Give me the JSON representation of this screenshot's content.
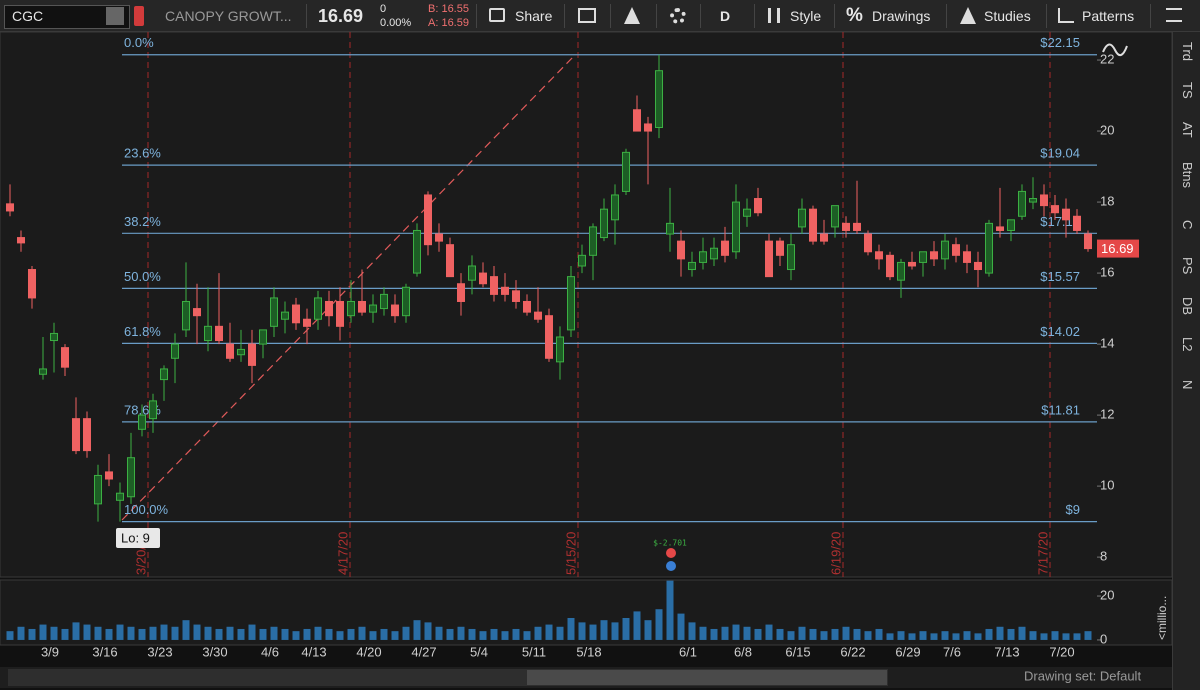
{
  "toolbar": {
    "symbol": "CGC",
    "description": "CANOPY GROWT...",
    "last": "16.69",
    "change": "0",
    "change_pct": "0.00%",
    "bid": "B: 16.55",
    "ask": "A: 16.59",
    "share": "Share",
    "aggregation": "D",
    "style": "Style",
    "drawings": "Drawings",
    "studies": "Studies",
    "patterns": "Patterns"
  },
  "sidebar": [
    "Trd",
    "TS",
    "AT",
    "Btns",
    "C",
    "PS",
    "DB",
    "L2",
    "N"
  ],
  "footer": "Drawing set: Default",
  "chart_data": {
    "type": "candlestick",
    "categories": [
      null,
      null,
      null,
      null,
      "3/9",
      null,
      null,
      null,
      null,
      "3/16",
      null,
      null,
      null,
      null,
      "3/23",
      null,
      null,
      null,
      null,
      "3/30",
      null,
      null,
      null,
      null,
      "4/6",
      null,
      null,
      null,
      "4/13",
      null,
      null,
      null,
      null,
      "4/20",
      null,
      null,
      null,
      null,
      "4/27",
      null,
      null,
      null,
      null,
      "5/4",
      null,
      null,
      null,
      null,
      "5/11",
      null,
      null,
      null,
      null,
      "5/18",
      null,
      null,
      null,
      null,
      null,
      null,
      null,
      null,
      "6/1",
      null,
      null,
      null,
      null,
      "6/8",
      null,
      null,
      null,
      null,
      "6/15",
      null,
      null,
      null,
      null,
      "6/22",
      null,
      null,
      null,
      null,
      "6/29",
      null,
      null,
      null,
      "7/6",
      null,
      null,
      null,
      null,
      "7/13",
      null,
      null,
      null,
      null,
      "7/20",
      null,
      null
    ],
    "ohlc": [
      [
        17.95,
        18.5,
        17.6,
        17.75
      ],
      [
        17.0,
        17.2,
        16.6,
        16.85
      ],
      [
        16.1,
        16.2,
        15.0,
        15.3
      ],
      [
        13.15,
        14.2,
        13.0,
        13.3
      ],
      [
        14.1,
        14.6,
        13.2,
        14.3
      ],
      [
        13.9,
        14.0,
        13.1,
        13.35
      ],
      [
        11.9,
        12.5,
        10.9,
        11.0
      ],
      [
        11.9,
        12.1,
        10.8,
        11.0
      ],
      [
        9.5,
        10.6,
        9.0,
        10.3
      ],
      [
        10.4,
        10.9,
        10.0,
        10.2
      ],
      [
        9.6,
        10.1,
        9.0,
        9.8
      ],
      [
        9.7,
        11.5,
        9.5,
        10.8
      ],
      [
        11.6,
        12.3,
        11.4,
        12.0
      ],
      [
        11.9,
        12.6,
        11.5,
        12.4
      ],
      [
        13.0,
        13.4,
        12.4,
        13.3
      ],
      [
        13.6,
        14.3,
        12.9,
        14.0
      ],
      [
        14.4,
        16.3,
        14.2,
        15.2
      ],
      [
        15.0,
        15.7,
        14.0,
        14.8
      ],
      [
        14.1,
        15.6,
        13.8,
        14.5
      ],
      [
        14.5,
        16.0,
        14.0,
        14.1
      ],
      [
        14.0,
        14.6,
        13.5,
        13.6
      ],
      [
        13.7,
        14.4,
        13.5,
        13.85
      ],
      [
        14.0,
        14.4,
        12.9,
        13.4
      ],
      [
        14.0,
        14.3,
        13.6,
        14.4
      ],
      [
        14.5,
        15.6,
        14.2,
        15.3
      ],
      [
        14.7,
        15.2,
        14.3,
        14.9
      ],
      [
        15.1,
        15.3,
        14.4,
        14.6
      ],
      [
        14.7,
        15.0,
        14.0,
        14.5
      ],
      [
        14.7,
        15.5,
        14.4,
        15.3
      ],
      [
        15.2,
        15.5,
        14.5,
        14.8
      ],
      [
        15.2,
        15.6,
        14.1,
        14.5
      ],
      [
        14.8,
        15.8,
        14.6,
        15.2
      ],
      [
        15.2,
        16.1,
        14.8,
        14.9
      ],
      [
        14.9,
        15.4,
        14.6,
        15.1
      ],
      [
        15.0,
        15.6,
        14.8,
        15.4
      ],
      [
        15.1,
        15.4,
        14.6,
        14.8
      ],
      [
        14.8,
        15.7,
        14.6,
        15.6
      ],
      [
        16.0,
        17.4,
        15.9,
        17.2
      ],
      [
        18.2,
        18.3,
        16.5,
        16.8
      ],
      [
        17.1,
        17.4,
        16.6,
        16.9
      ],
      [
        16.8,
        17.0,
        15.9,
        15.9
      ],
      [
        15.7,
        16.0,
        14.8,
        15.2
      ],
      [
        15.8,
        16.5,
        15.4,
        16.2
      ],
      [
        16.0,
        16.3,
        15.6,
        15.7
      ],
      [
        15.9,
        16.2,
        15.2,
        15.4
      ],
      [
        15.6,
        16.0,
        15.2,
        15.4
      ],
      [
        15.5,
        15.8,
        15.0,
        15.2
      ],
      [
        15.2,
        15.4,
        14.8,
        14.9
      ],
      [
        14.9,
        15.6,
        14.6,
        14.7
      ],
      [
        14.8,
        15.0,
        13.5,
        13.6
      ],
      [
        13.5,
        14.5,
        13.0,
        14.2
      ],
      [
        14.4,
        16.2,
        14.2,
        15.9
      ],
      [
        16.2,
        16.8,
        16.0,
        16.5
      ],
      [
        16.5,
        17.4,
        15.8,
        17.3
      ],
      [
        17.0,
        18.1,
        16.9,
        17.8
      ],
      [
        17.5,
        18.5,
        16.8,
        18.2
      ],
      [
        18.3,
        19.5,
        18.2,
        19.4
      ],
      [
        20.6,
        21.0,
        20.0,
        20.0
      ],
      [
        20.2,
        20.4,
        18.5,
        20.0
      ],
      [
        20.1,
        22.15,
        19.8,
        21.7
      ],
      [
        17.1,
        18.4,
        16.6,
        17.4
      ],
      [
        16.9,
        17.2,
        15.9,
        16.4
      ],
      [
        16.1,
        16.6,
        15.9,
        16.3
      ],
      [
        16.3,
        17.0,
        16.1,
        16.6
      ],
      [
        16.4,
        17.0,
        16.2,
        16.7
      ],
      [
        16.9,
        17.3,
        16.3,
        16.5
      ],
      [
        16.6,
        18.5,
        16.4,
        18.0
      ],
      [
        17.6,
        18.1,
        17.3,
        17.8
      ],
      [
        18.1,
        18.4,
        17.6,
        17.7
      ],
      [
        16.9,
        17.1,
        15.9,
        15.9
      ],
      [
        16.9,
        17.0,
        16.2,
        16.5
      ],
      [
        16.1,
        17.1,
        15.8,
        16.8
      ],
      [
        17.3,
        18.1,
        17.1,
        17.8
      ],
      [
        17.8,
        17.9,
        16.8,
        16.9
      ],
      [
        17.1,
        17.5,
        16.8,
        16.9
      ],
      [
        17.3,
        17.9,
        17.0,
        17.9
      ],
      [
        17.4,
        17.6,
        17.0,
        17.2
      ],
      [
        17.4,
        18.6,
        17.1,
        17.2
      ],
      [
        17.1,
        17.2,
        16.5,
        16.6
      ],
      [
        16.6,
        16.8,
        16.1,
        16.4
      ],
      [
        16.5,
        16.6,
        15.8,
        15.9
      ],
      [
        15.8,
        16.4,
        15.3,
        16.3
      ],
      [
        16.3,
        16.6,
        16.1,
        16.2
      ],
      [
        16.3,
        16.6,
        15.9,
        16.6
      ],
      [
        16.6,
        16.9,
        16.2,
        16.4
      ],
      [
        16.4,
        17.1,
        16.1,
        16.9
      ],
      [
        16.8,
        17.0,
        16.3,
        16.5
      ],
      [
        16.6,
        16.8,
        16.0,
        16.3
      ],
      [
        16.3,
        16.6,
        15.6,
        16.1
      ],
      [
        16.0,
        17.5,
        15.9,
        17.4
      ],
      [
        17.3,
        18.4,
        17.0,
        17.2
      ],
      [
        17.2,
        17.5,
        16.9,
        17.5
      ],
      [
        17.6,
        18.5,
        17.5,
        18.3
      ],
      [
        18.0,
        18.7,
        17.8,
        18.1
      ],
      [
        18.2,
        18.5,
        17.6,
        17.9
      ],
      [
        17.9,
        18.2,
        17.5,
        17.7
      ],
      [
        17.8,
        18.1,
        17.0,
        17.5
      ],
      [
        17.6,
        17.8,
        17.1,
        17.2
      ],
      [
        17.1,
        17.2,
        16.6,
        16.69
      ]
    ],
    "volume": [
      4,
      6,
      5,
      7,
      6,
      5,
      8,
      7,
      6,
      5,
      7,
      6,
      5,
      6,
      7,
      6,
      9,
      7,
      6,
      5,
      6,
      5,
      7,
      5,
      6,
      5,
      4,
      5,
      6,
      5,
      4,
      5,
      6,
      4,
      5,
      4,
      6,
      9,
      8,
      6,
      5,
      6,
      5,
      4,
      5,
      4,
      5,
      4,
      6,
      7,
      6,
      10,
      8,
      7,
      9,
      8,
      10,
      13,
      9,
      14,
      27,
      12,
      8,
      6,
      5,
      6,
      7,
      6,
      5,
      7,
      5,
      4,
      6,
      5,
      4,
      5,
      6,
      5,
      4,
      5,
      3,
      4,
      3,
      4,
      3,
      4,
      3,
      4,
      3,
      5,
      6,
      5,
      6,
      4,
      3,
      4,
      3,
      3,
      4
    ],
    "up_color": "#3cb043",
    "down_color": "#ef6262",
    "volume_color": "#2a6ea6",
    "ylim": [
      7.44,
      22.79
    ],
    "yticks": [
      8,
      10,
      12,
      14,
      16,
      18,
      20,
      22
    ],
    "volume_ylim": [
      -2.3,
      27.3
    ],
    "volume_yticks": [
      0,
      20
    ],
    "volume_label": "<millio...",
    "last_price": 16.69,
    "fib_levels": [
      {
        "ratio": "0.0%",
        "value": 22.15,
        "value_label": "$22.15"
      },
      {
        "ratio": "23.6%",
        "value": 19.04,
        "value_label": "$19.04"
      },
      {
        "ratio": "38.2%",
        "value": 17.12,
        "value_label": "$17.12"
      },
      {
        "ratio": "50.0%",
        "value": 15.57,
        "value_label": "$15.57"
      },
      {
        "ratio": "61.8%",
        "value": 14.02,
        "value_label": "$14.02"
      },
      {
        "ratio": "78.6%",
        "value": 11.81,
        "value_label": "$11.81"
      },
      {
        "ratio": "100.0%",
        "value": 9,
        "value_label": "$9"
      }
    ],
    "expirations": [
      "3/20/20",
      "4/17/20",
      "5/15/20",
      "6/19/20",
      "7/17/20"
    ],
    "low_label": "Lo: 9",
    "earnings_label": "$-2.701"
  }
}
